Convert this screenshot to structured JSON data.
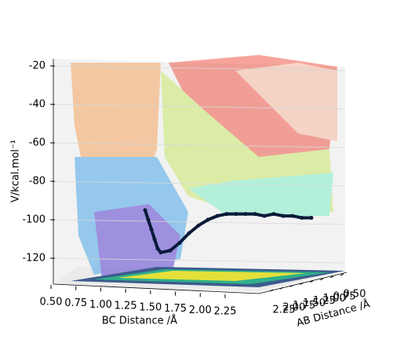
{
  "chart_data": {
    "type": "surface3d",
    "zlabel": "V/kcal.mol⁻¹",
    "xlabel": "BC Distance /Å",
    "ylabel": "AB Distance /Å",
    "zlim": [
      -137,
      -18
    ],
    "zticks": [
      -20,
      -40,
      -60,
      -80,
      -100,
      -120
    ],
    "xticks": [
      {
        "value": 0.5,
        "label": "0.50"
      },
      {
        "value": 0.75,
        "label": "0.75"
      },
      {
        "value": 1.0,
        "label": "1.00"
      },
      {
        "value": 1.25,
        "label": "1.25"
      },
      {
        "value": 1.5,
        "label": "1.50"
      },
      {
        "value": 1.75,
        "label": "1.75"
      },
      {
        "value": 2.0,
        "label": "2.00"
      },
      {
        "value": 2.25,
        "label": "2.25"
      }
    ],
    "yticks": [
      {
        "value": 2.25,
        "label": "2.25"
      },
      {
        "value": 2.0,
        "label": "2.00"
      },
      {
        "value": 1.75,
        "label": "1.75"
      },
      {
        "value": 1.5,
        "label": "1.50"
      },
      {
        "value": 1.25,
        "label": "1.25"
      },
      {
        "value": 1.0,
        "label": "1.00"
      },
      {
        "value": 0.75,
        "label": "0.75"
      },
      {
        "value": 0.5,
        "label": "0.50"
      }
    ],
    "trajectory": {
      "color": "#0a1a3a",
      "values": [
        -95,
        -100,
        -105,
        -110,
        -115,
        -117,
        -116,
        -112,
        -107,
        -103,
        -100,
        -98,
        -97,
        -97,
        -97,
        -97,
        -98,
        -97,
        -98,
        -98,
        -99,
        -99
      ]
    }
  }
}
